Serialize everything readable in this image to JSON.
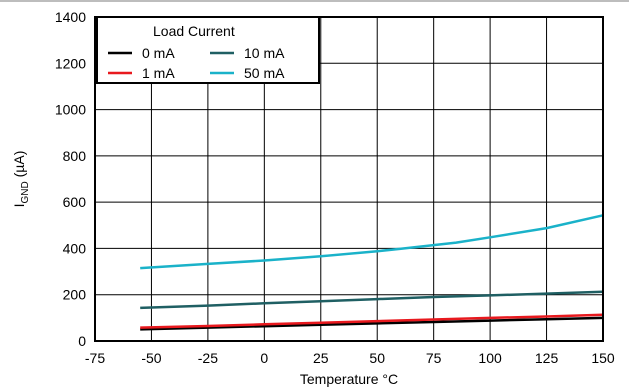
{
  "chart_data": {
    "type": "line",
    "title": "",
    "xlabel": "Temperature °C",
    "ylabel": "I",
    "ylabel_sub": "GND",
    "ylabel_unit": " (µA)",
    "xlim": [
      -75,
      150
    ],
    "ylim": [
      0,
      1400
    ],
    "xticks": [
      -75,
      -50,
      -25,
      0,
      25,
      50,
      75,
      100,
      125,
      150
    ],
    "yticks": [
      0,
      200,
      400,
      600,
      800,
      1000,
      1200,
      1400
    ],
    "grid": true,
    "legend": {
      "title": "Load Current",
      "placement": "top-left"
    },
    "series": [
      {
        "name": "0 mA",
        "color": "#000000",
        "x": [
          -55,
          -25,
          0,
          25,
          50,
          75,
          100,
          125,
          150
        ],
        "y": [
          50,
          58,
          64,
          70,
          76,
          82,
          88,
          94,
          100
        ]
      },
      {
        "name": "10 mA",
        "color": "#1f5f63",
        "x": [
          -55,
          -25,
          0,
          25,
          50,
          75,
          100,
          125,
          150
        ],
        "y": [
          143,
          153,
          163,
          172,
          181,
          190,
          197,
          205,
          213
        ]
      },
      {
        "name": "1 mA",
        "color": "#e8191e",
        "x": [
          -55,
          -25,
          0,
          25,
          50,
          75,
          100,
          125,
          150
        ],
        "y": [
          58,
          65,
          72,
          79,
          86,
          93,
          100,
          106,
          113
        ]
      },
      {
        "name": "50 mA",
        "color": "#1ab2c9",
        "x": [
          -55,
          -25,
          0,
          25,
          50,
          60,
          85,
          100,
          125,
          150
        ],
        "y": [
          315,
          333,
          348,
          366,
          388,
          398,
          425,
          448,
          488,
          543
        ]
      }
    ]
  }
}
